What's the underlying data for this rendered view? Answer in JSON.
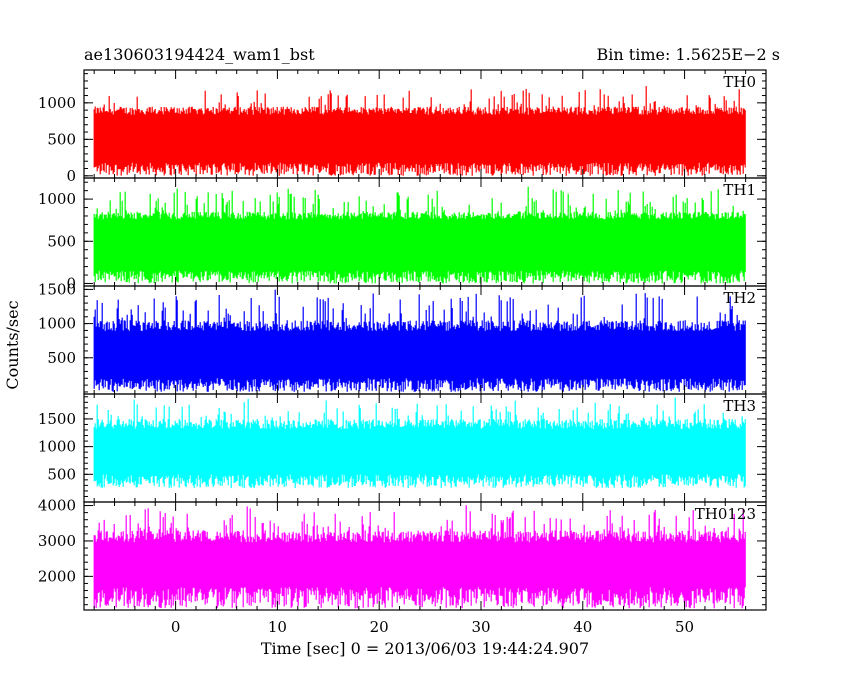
{
  "header": {
    "title_left": "ae130603194424_wam1_bst",
    "title_right": "Bin time: 1.5625E−2 s"
  },
  "chart_data": {
    "type": "line",
    "title": "ae130603194424_wam1_bst",
    "subtitle": "Bin time: 1.5625E−2 s",
    "xlabel": "Time [sec] 0 = 2013/06/03 19:44:24.907",
    "ylabel": "Counts/sec",
    "xlim": [
      -9,
      58
    ],
    "x_ticks": [
      0,
      10,
      20,
      30,
      40,
      50
    ],
    "x_minor_step": 2,
    "series_x_range": [
      -8,
      56
    ],
    "panels": [
      {
        "name": "TH0",
        "color": "#ff0000",
        "ylim": [
          -30,
          1450
        ],
        "y_ticks": [
          0,
          500,
          1000
        ],
        "y_minor_step": 100,
        "baseline": 700,
        "high_range": [
          950,
          1250
        ],
        "low_range": [
          0,
          180
        ]
      },
      {
        "name": "TH1",
        "color": "#00ff00",
        "ylim": [
          -30,
          1250
        ],
        "y_ticks": [
          0,
          500,
          1000
        ],
        "y_minor_step": 100,
        "baseline": 650,
        "high_range": [
          850,
          1150
        ],
        "low_range": [
          0,
          150
        ]
      },
      {
        "name": "TH2",
        "color": "#0000ff",
        "ylim": [
          -30,
          1550
        ],
        "y_ticks": [
          500,
          1000,
          1500
        ],
        "y_minor_step": 100,
        "baseline": 700,
        "high_range": [
          1050,
          1500
        ],
        "low_range": [
          0,
          200
        ]
      },
      {
        "name": "TH3",
        "color": "#00ffff",
        "ylim": [
          0,
          1950
        ],
        "y_ticks": [
          500,
          1000,
          1500
        ],
        "y_minor_step": 100,
        "baseline": 1100,
        "high_range": [
          1500,
          1900
        ],
        "low_range": [
          250,
          500
        ]
      },
      {
        "name": "TH0123",
        "color": "#ff00ff",
        "ylim": [
          1050,
          4100
        ],
        "y_ticks": [
          2000,
          3000,
          4000
        ],
        "y_minor_step": 200,
        "baseline": 2550,
        "high_range": [
          3300,
          4050
        ],
        "low_range": [
          1100,
          1700
        ]
      }
    ]
  }
}
